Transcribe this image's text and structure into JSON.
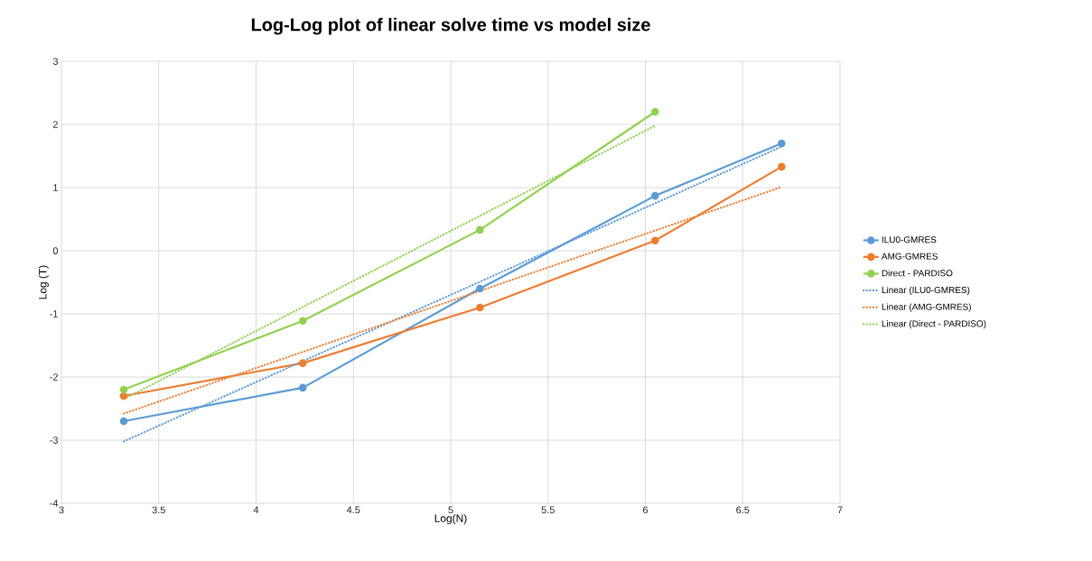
{
  "chart_data": {
    "type": "line",
    "title": "Log-Log plot of linear solve time vs model size",
    "xlabel": "Log(N)",
    "ylabel": "Log (T)",
    "xlim": [
      3,
      7
    ],
    "xticks": [
      3,
      3.5,
      4,
      4.5,
      5,
      5.5,
      6,
      6.5,
      7
    ],
    "ylim": [
      -4,
      3
    ],
    "yticks": [
      -4,
      -3,
      -2,
      -1,
      0,
      1,
      2,
      3
    ],
    "grid": true,
    "legend": "right",
    "series": [
      {
        "name": "ILU0-GMRES",
        "color": "#5b9bd5",
        "marker": "circle",
        "line_style": "solid",
        "x": [
          3.32,
          4.24,
          5.15,
          6.05,
          6.7
        ],
        "values": [
          -2.7,
          -2.17,
          -0.6,
          0.87,
          1.7
        ]
      },
      {
        "name": "AMG-GMRES",
        "color": "#ed7d31",
        "marker": "circle",
        "line_style": "solid",
        "x": [
          3.32,
          4.24,
          5.15,
          6.05,
          6.7
        ],
        "values": [
          -2.3,
          -1.78,
          -0.9,
          0.16,
          1.33
        ]
      },
      {
        "name": "Direct - PARDISO",
        "color": "#92d050",
        "marker": "circle",
        "line_style": "solid",
        "x": [
          3.32,
          4.24,
          5.15,
          6.05
        ],
        "values": [
          -2.2,
          -1.11,
          0.33,
          2.2
        ]
      },
      {
        "name": "Linear (ILU0-GMRES)",
        "color": "#5b9bd5",
        "marker": "none",
        "line_style": "dotted",
        "x": [
          3.32,
          6.7
        ],
        "values": [
          -3.02,
          1.65
        ]
      },
      {
        "name": "Linear (AMG-GMRES)",
        "color": "#ed7d31",
        "marker": "none",
        "line_style": "dotted",
        "x": [
          3.32,
          6.7
        ],
        "values": [
          -2.58,
          1.01
        ]
      },
      {
        "name": "Linear (Direct - PARDISO)",
        "color": "#92d050",
        "marker": "none",
        "line_style": "dotted",
        "x": [
          3.32,
          6.05
        ],
        "values": [
          -2.35,
          1.98
        ]
      }
    ]
  }
}
